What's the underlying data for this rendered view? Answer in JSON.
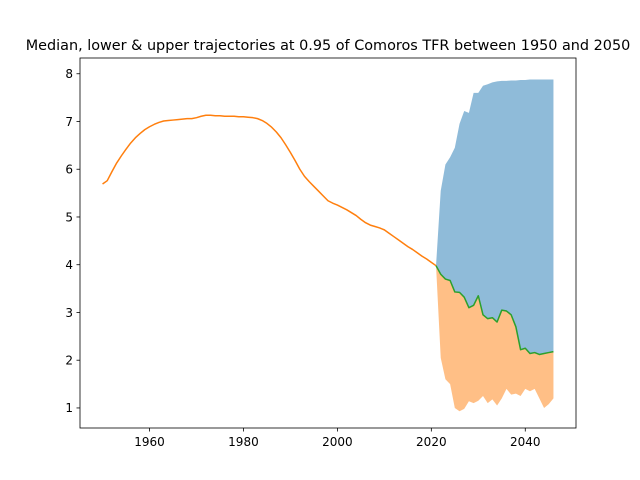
{
  "chart_data": {
    "type": "area",
    "title": "Median, lower & upper trajectories at 0.95 of Comoros TFR between 1950 and 2050",
    "xlabel": "",
    "ylabel": "",
    "xlim": [
      1945.2,
      2050.8
    ],
    "ylim": [
      0.58,
      8.33
    ],
    "xticks": [
      1960,
      1980,
      2000,
      2020,
      2040
    ],
    "yticks": [
      1,
      2,
      3,
      4,
      5,
      6,
      7,
      8
    ],
    "grid": false,
    "legend": "none",
    "colors": {
      "upper_fill": "#1f77b4",
      "lower_fill": "#ff7f0e",
      "median_line": "#2ca02c",
      "history_line": "#ff7f0e",
      "fill_alpha": 0.5
    },
    "series": [
      {
        "role": "history",
        "x": [
          1950,
          1951,
          1952,
          1953,
          1954,
          1955,
          1956,
          1957,
          1958,
          1959,
          1960,
          1961,
          1962,
          1963,
          1964,
          1965,
          1966,
          1967,
          1968,
          1969,
          1970,
          1971,
          1972,
          1973,
          1974,
          1975,
          1976,
          1977,
          1978,
          1979,
          1980,
          1981,
          1982,
          1983,
          1984,
          1985,
          1986,
          1987,
          1988,
          1989,
          1990,
          1991,
          1992,
          1993,
          1994,
          1995,
          1996,
          1997,
          1998,
          1999,
          2000,
          2001,
          2002,
          2003,
          2004,
          2005,
          2006,
          2007,
          2008,
          2009,
          2010,
          2011,
          2012,
          2013,
          2014,
          2015,
          2016,
          2017,
          2018,
          2019,
          2020,
          2021
        ],
        "y": [
          5.69,
          5.76,
          5.95,
          6.13,
          6.28,
          6.42,
          6.55,
          6.66,
          6.75,
          6.83,
          6.89,
          6.94,
          6.98,
          7.01,
          7.02,
          7.03,
          7.04,
          7.05,
          7.06,
          7.06,
          7.08,
          7.11,
          7.13,
          7.13,
          7.12,
          7.12,
          7.11,
          7.11,
          7.11,
          7.1,
          7.1,
          7.09,
          7.08,
          7.06,
          7.02,
          6.96,
          6.88,
          6.78,
          6.66,
          6.51,
          6.35,
          6.18,
          6.0,
          5.85,
          5.74,
          5.64,
          5.54,
          5.44,
          5.34,
          5.29,
          5.25,
          5.2,
          5.15,
          5.09,
          5.03,
          4.95,
          4.88,
          4.83,
          4.8,
          4.77,
          4.73,
          4.66,
          4.59,
          4.52,
          4.45,
          4.38,
          4.32,
          4.25,
          4.18,
          4.12,
          4.05,
          3.98
        ]
      },
      {
        "role": "median",
        "x": [
          2021,
          2022,
          2023,
          2024,
          2025,
          2026,
          2027,
          2028,
          2029,
          2030,
          2031,
          2032,
          2033,
          2034,
          2035,
          2036,
          2037,
          2038,
          2039,
          2040,
          2041,
          2042,
          2043,
          2044,
          2045,
          2046
        ],
        "y": [
          3.98,
          3.8,
          3.7,
          3.67,
          3.43,
          3.42,
          3.32,
          3.1,
          3.15,
          3.35,
          2.95,
          2.87,
          2.89,
          2.8,
          3.05,
          3.03,
          2.95,
          2.7,
          2.22,
          2.25,
          2.14,
          2.16,
          2.12,
          2.14,
          2.16,
          2.18
        ]
      },
      {
        "role": "upper",
        "x": [
          2021,
          2022,
          2023,
          2024,
          2025,
          2026,
          2027,
          2028,
          2029,
          2030,
          2031,
          2032,
          2033,
          2034,
          2035,
          2036,
          2037,
          2038,
          2039,
          2040,
          2041,
          2042,
          2043,
          2044,
          2045,
          2046
        ],
        "y": [
          3.98,
          5.55,
          6.1,
          6.25,
          6.45,
          6.95,
          7.22,
          7.18,
          7.6,
          7.6,
          7.75,
          7.78,
          7.82,
          7.84,
          7.85,
          7.85,
          7.86,
          7.86,
          7.87,
          7.87,
          7.88,
          7.88,
          7.88,
          7.88,
          7.88,
          7.88
        ]
      },
      {
        "role": "lower",
        "x": [
          2021,
          2022,
          2023,
          2024,
          2025,
          2026,
          2027,
          2028,
          2029,
          2030,
          2031,
          2032,
          2033,
          2034,
          2035,
          2036,
          2037,
          2038,
          2039,
          2040,
          2041,
          2042,
          2043,
          2044,
          2045,
          2046
        ],
        "y": [
          3.98,
          2.05,
          1.6,
          1.5,
          1.0,
          0.93,
          0.98,
          1.14,
          1.1,
          1.15,
          1.25,
          1.1,
          1.18,
          1.05,
          1.2,
          1.4,
          1.28,
          1.3,
          1.25,
          1.4,
          1.35,
          1.4,
          1.2,
          1.0,
          1.08,
          1.2
        ]
      }
    ]
  }
}
